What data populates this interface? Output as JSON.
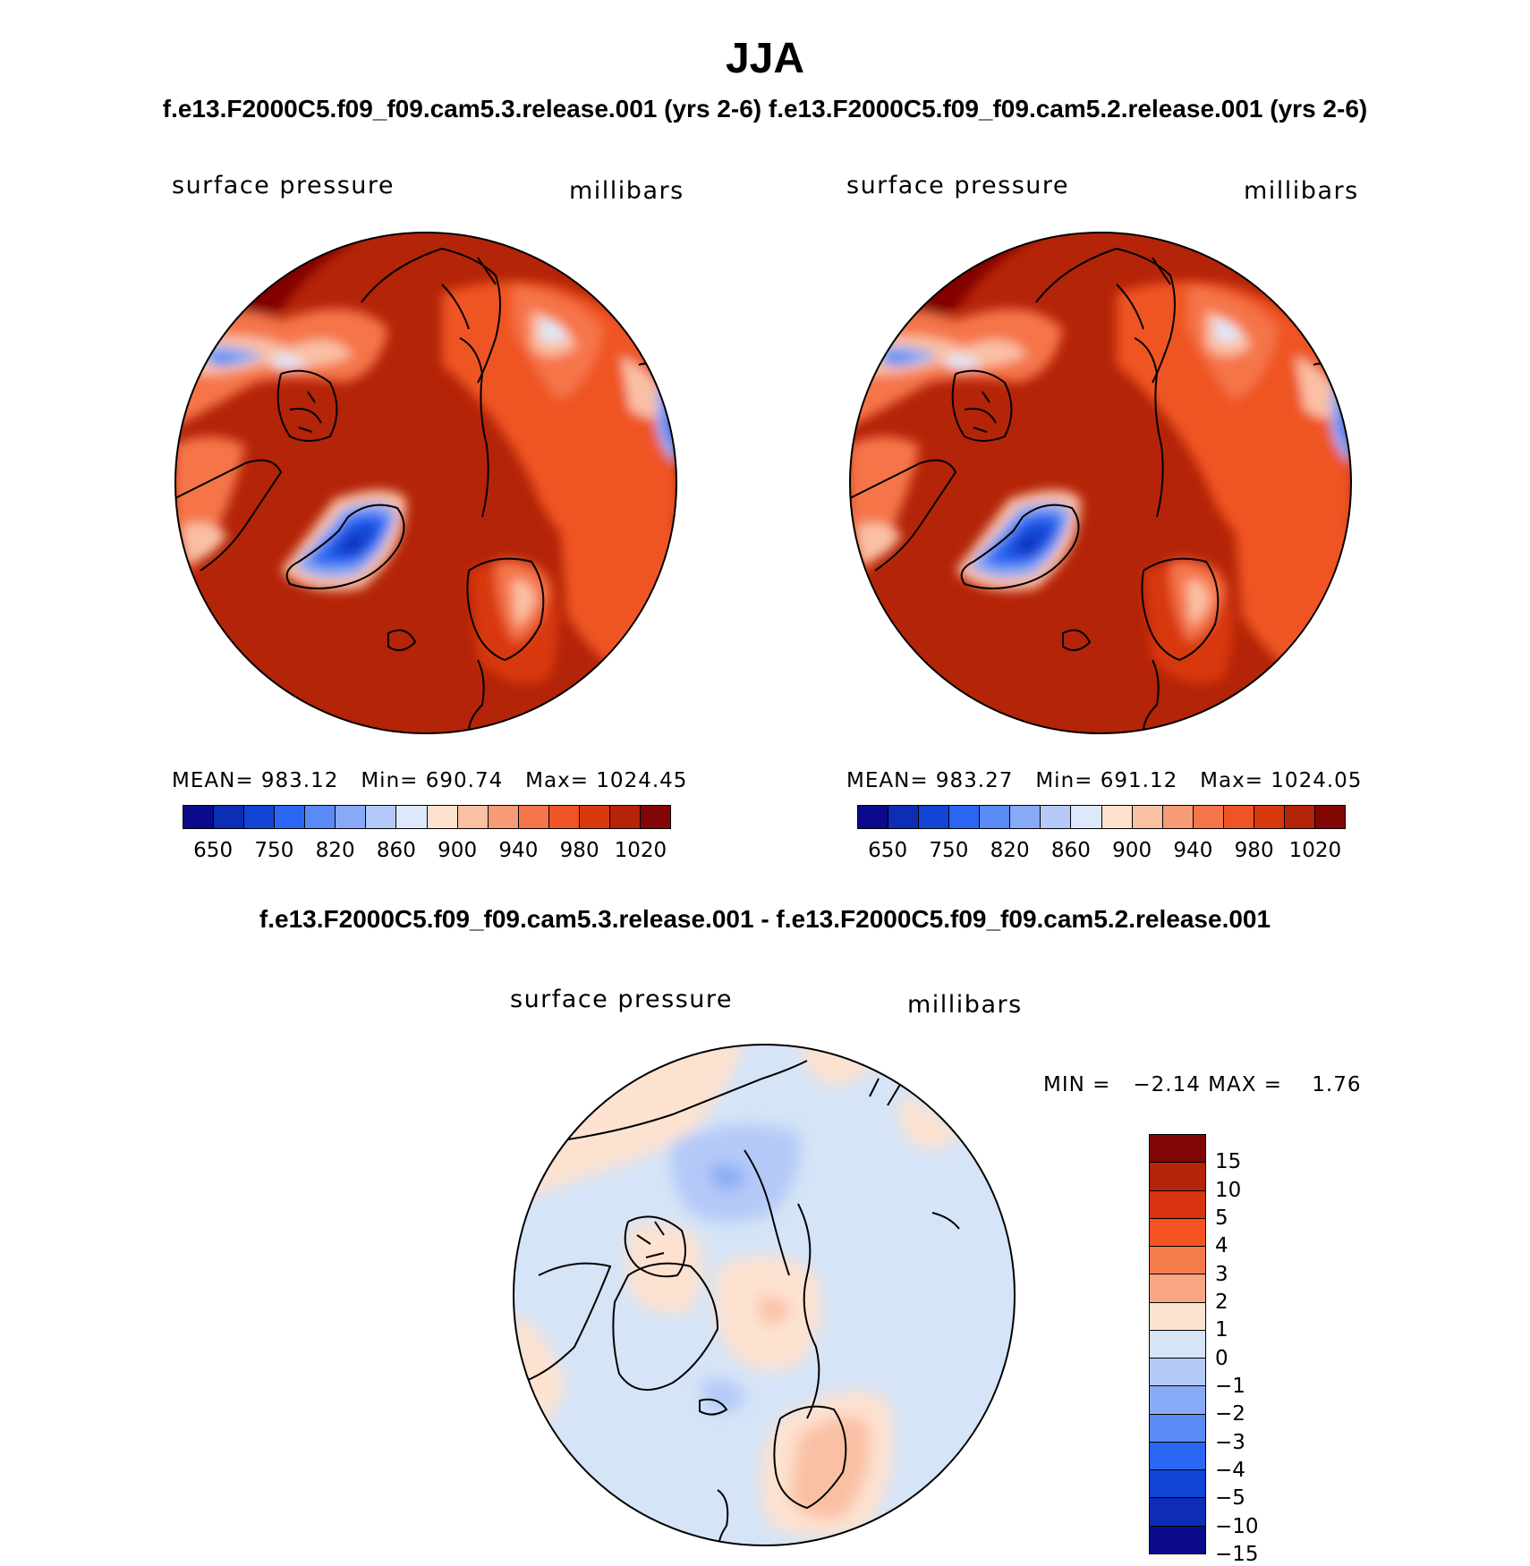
{
  "header": {
    "season": "JJA",
    "subtitle": "f.e13.F2000C5.f09_f09.cam5.3.release.001 (yrs 2-6)  f.e13.F2000C5.f09_f09.cam5.2.release.001 (yrs 2-6)",
    "diff_title": "f.e13.F2000C5.f09_f09.cam5.3.release.001 - f.e13.F2000C5.f09_f09.cam5.2.release.001"
  },
  "panels": [
    {
      "variable": "surface pressure",
      "units": "millibars",
      "mean_label": "MEAN=",
      "mean": "983.12",
      "min_label": "Min=",
      "min": "690.74",
      "max_label": "Max=",
      "max": "1024.45"
    },
    {
      "variable": "surface pressure",
      "units": "millibars",
      "mean_label": "MEAN=",
      "mean": "983.27",
      "min_label": "Min=",
      "min": "691.12",
      "max_label": "Max=",
      "max": "1024.05"
    }
  ],
  "diff_panel": {
    "variable": "surface pressure",
    "units": "millibars",
    "stats": "MIN =   −2.14 MAX =    1.76"
  },
  "colorbar_abs": {
    "colors": [
      "#0a0a8a",
      "#0c2db4",
      "#1244d6",
      "#2a66f2",
      "#5a8af5",
      "#88aaf6",
      "#b4c9f8",
      "#dde9fa",
      "#fde2d0",
      "#fac0a4",
      "#f79a76",
      "#f5744a",
      "#ef5424",
      "#d8380e",
      "#b42408",
      "#820606"
    ],
    "ticks": [
      "650",
      "750",
      "820",
      "860",
      "900",
      "940",
      "980",
      "1020"
    ]
  },
  "colorbar_diff": {
    "colors": [
      "#820606",
      "#b42408",
      "#d83410",
      "#f35420",
      "#f57b4c",
      "#f8a686",
      "#fde2d0",
      "#d5e4f7",
      "#b4c9f8",
      "#88aaf6",
      "#5a8af5",
      "#2a66f2",
      "#1244d6",
      "#0c2db4",
      "#0a0a8a"
    ],
    "ticks": [
      "15",
      "10",
      "5",
      "4",
      "3",
      "2",
      "1",
      "0",
      "−1",
      "−2",
      "−3",
      "−4",
      "−5",
      "−10",
      "−15"
    ]
  }
}
